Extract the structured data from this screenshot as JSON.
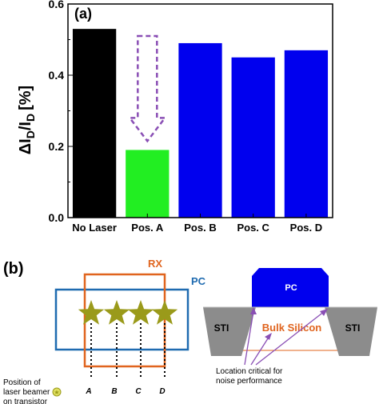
{
  "chart_data": {
    "type": "bar",
    "panel_label": "(a)",
    "title": "",
    "xlabel": "",
    "ylabel_main": "ΔI",
    "ylabel_sub1": "D",
    "ylabel_mid": "/I",
    "ylabel_sub2": "D",
    "ylabel_unit": "[%]",
    "ylim": [
      0.0,
      0.6
    ],
    "yticks": [
      "0.0",
      "0.2",
      "0.4",
      "0.6"
    ],
    "ytick_values": [
      0.0,
      0.2,
      0.4,
      0.6
    ],
    "categories": [
      "No Laser",
      "Pos. A",
      "Pos. B",
      "Pos. C",
      "Pos. D"
    ],
    "values": [
      0.53,
      0.19,
      0.49,
      0.45,
      0.47
    ],
    "colors": [
      "#000000",
      "#22ee22",
      "#0000ee",
      "#0000ee",
      "#0000ee"
    ],
    "arrow_color": "#8a4fb5",
    "grid": false
  },
  "schematic": {
    "panel_label": "(b)",
    "rx_label": "RX",
    "pc_label": "PC",
    "rx_color": "#e0641e",
    "pc_color": "#1f6bb0",
    "star_color": "#9a9a1a",
    "positions": [
      "A",
      "B",
      "C",
      "D"
    ],
    "legend_line1": "Position of",
    "legend_line2": "laser beamer",
    "legend_line3": "on transistor",
    "cross_section": {
      "gate_label": "PC",
      "bulk_label": "Bulk Silicon",
      "sti_left": "STI",
      "sti_right": "STI",
      "note_line1": "Location critical for",
      "note_line2": "noise performance",
      "gate_color": "#0000ee",
      "bulk_color": "#e0641e",
      "sti_color": "#8c8c8c",
      "arrow_color": "#8a4fb5"
    }
  }
}
